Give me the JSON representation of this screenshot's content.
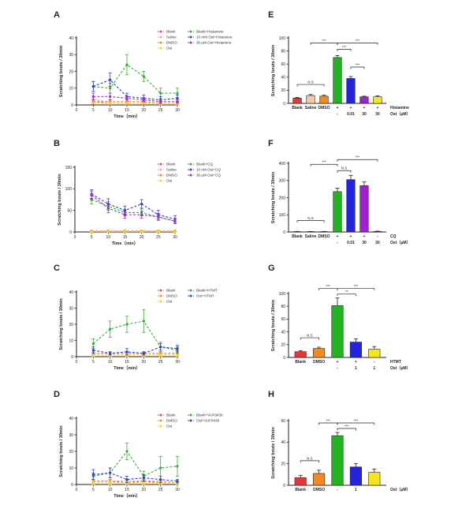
{
  "figure": {
    "background": "#ffffff"
  },
  "chart_data": [
    {
      "panel": "A",
      "type": "line",
      "xlabel": "Time（min）",
      "ylabel": "Scratching bouts / 30min",
      "xlim": [
        0,
        30
      ],
      "ylim": [
        0,
        40
      ],
      "xticks": [
        0,
        5,
        10,
        15,
        20,
        25,
        30
      ],
      "yticks": [
        0,
        10,
        20,
        30,
        40
      ],
      "x": [
        5,
        10,
        15,
        20,
        25,
        30
      ],
      "legend": [
        "Blank",
        "Saline",
        "DMSO",
        "Ost",
        "Blank+Histamine",
        "10 mM Ost+Histamine",
        "30 μM Ost+Histamine"
      ],
      "series": [
        {
          "name": "Blank",
          "color": "#e8464f",
          "values": [
            2,
            1,
            1,
            1,
            1,
            1
          ],
          "errors": [
            1,
            1,
            1,
            1,
            1,
            1
          ]
        },
        {
          "name": "Saline",
          "color": "#f4a3b5",
          "values": [
            3,
            2,
            2,
            2,
            1,
            1
          ],
          "errors": [
            1,
            1,
            1,
            1,
            1,
            1
          ]
        },
        {
          "name": "DMSO",
          "color": "#f08a24",
          "values": [
            2,
            2,
            2,
            2,
            1,
            1
          ],
          "errors": [
            1,
            1,
            1,
            1,
            1,
            1
          ]
        },
        {
          "name": "Ost",
          "color": "#f2d51c",
          "values": [
            1,
            1,
            1,
            1,
            1,
            1
          ],
          "errors": [
            0.5,
            0.5,
            0.5,
            0.5,
            0.5,
            0.5
          ]
        },
        {
          "name": "Blank+Histamine",
          "color": "#3aaa35",
          "values": [
            11,
            10,
            24,
            17,
            7,
            7
          ],
          "errors": [
            3,
            3,
            6,
            3,
            3,
            3
          ]
        },
        {
          "name": "10 mM Ost+Histamine",
          "color": "#2f3fd0",
          "values": [
            11,
            15,
            5,
            4,
            3,
            4
          ],
          "errors": [
            3,
            4,
            2,
            2,
            2,
            2
          ]
        },
        {
          "name": "30 μM Ost+Histamine",
          "color": "#9b30c8",
          "values": [
            5,
            5,
            4,
            3,
            2,
            2
          ],
          "errors": [
            2,
            2,
            1,
            1,
            1,
            1
          ]
        }
      ]
    },
    {
      "panel": "B",
      "type": "line",
      "xlabel": "Time（min）",
      "ylabel": "Scratching bouts / 30min",
      "xlim": [
        0,
        30
      ],
      "ylim": [
        0,
        150
      ],
      "xticks": [
        0,
        5,
        10,
        15,
        20,
        25,
        30
      ],
      "yticks": [
        0,
        50,
        100,
        150
      ],
      "x": [
        5,
        10,
        15,
        20,
        25,
        30
      ],
      "legend": [
        "Blank",
        "Saline",
        "DMSO",
        "Ost",
        "Blank+CQ",
        "10 nM Ost+CQ",
        "30 μM Ost+CQ"
      ],
      "series": [
        {
          "name": "Blank",
          "color": "#e8464f",
          "values": [
            2,
            2,
            2,
            2,
            2,
            2
          ],
          "errors": [
            1,
            1,
            1,
            1,
            1,
            1
          ]
        },
        {
          "name": "Saline",
          "color": "#f4a3b5",
          "values": [
            2,
            2,
            2,
            2,
            2,
            2
          ],
          "errors": [
            1,
            1,
            1,
            1,
            1,
            1
          ]
        },
        {
          "name": "DMSO",
          "color": "#f08a24",
          "values": [
            2,
            2,
            2,
            2,
            2,
            2
          ],
          "errors": [
            1,
            1,
            1,
            1,
            1,
            1
          ]
        },
        {
          "name": "Ost",
          "color": "#f2d51c",
          "values": [
            1,
            1,
            1,
            1,
            1,
            1
          ],
          "errors": [
            1,
            1,
            1,
            1,
            1,
            1
          ]
        },
        {
          "name": "Blank+CQ",
          "color": "#3aaa35",
          "values": [
            75,
            60,
            45,
            45,
            35,
            25
          ],
          "errors": [
            10,
            10,
            8,
            8,
            8,
            6
          ]
        },
        {
          "name": "10 nM Ost+CQ",
          "color": "#2f3fd0",
          "values": [
            88,
            65,
            50,
            65,
            40,
            30
          ],
          "errors": [
            10,
            12,
            10,
            10,
            10,
            8
          ]
        },
        {
          "name": "30 μM Ost+CQ",
          "color": "#9b30c8",
          "values": [
            85,
            55,
            40,
            40,
            35,
            25
          ],
          "errors": [
            10,
            10,
            8,
            8,
            8,
            6
          ]
        }
      ]
    },
    {
      "panel": "C",
      "type": "line",
      "xlabel": "Time（min）",
      "ylabel": "Scratching bouts / 30min",
      "xlim": [
        0,
        30
      ],
      "ylim": [
        0,
        40
      ],
      "xticks": [
        0,
        5,
        10,
        15,
        20,
        25,
        30
      ],
      "yticks": [
        0,
        10,
        20,
        30,
        40
      ],
      "x": [
        5,
        10,
        15,
        20,
        25,
        30
      ],
      "legend": [
        "Blank",
        "DMSO",
        "Ost",
        "Blank+HTMT",
        "Ost+HTMT"
      ],
      "series": [
        {
          "name": "Blank",
          "color": "#e8464f",
          "values": [
            2,
            2,
            2,
            2,
            2,
            2
          ],
          "errors": [
            1,
            1,
            1,
            1,
            1,
            1
          ]
        },
        {
          "name": "DMSO",
          "color": "#f08a24",
          "values": [
            2,
            2,
            2,
            2,
            2,
            2
          ],
          "errors": [
            1,
            1,
            1,
            1,
            1,
            1
          ]
        },
        {
          "name": "Ost",
          "color": "#f2d51c",
          "values": [
            1,
            1,
            1,
            1,
            1,
            1
          ],
          "errors": [
            1,
            1,
            1,
            1,
            1,
            1
          ]
        },
        {
          "name": "Blank+HTMT",
          "color": "#3aaa35",
          "values": [
            8,
            17,
            20,
            22,
            6,
            4
          ],
          "errors": [
            3,
            5,
            5,
            7,
            3,
            2
          ]
        },
        {
          "name": "Ost+HTMT",
          "color": "#2f3fd0",
          "values": [
            4,
            2,
            3,
            2,
            6,
            5
          ],
          "errors": [
            2,
            1,
            2,
            1,
            2,
            2
          ]
        }
      ]
    },
    {
      "panel": "D",
      "type": "line",
      "xlabel": "Time（min）",
      "ylabel": "Scratching bouts / 30min",
      "xlim": [
        0,
        30
      ],
      "ylim": [
        0,
        40
      ],
      "xticks": [
        0,
        5,
        10,
        15,
        20,
        25,
        30
      ],
      "yticks": [
        0,
        10,
        20,
        30,
        40
      ],
      "x": [
        5,
        10,
        15,
        20,
        25,
        30
      ],
      "legend": [
        "Blank",
        "DMSO",
        "Ost",
        "Blank+VUF8430",
        "Ost+VUF8430"
      ],
      "series": [
        {
          "name": "Blank",
          "color": "#e8464f",
          "values": [
            2,
            2,
            1,
            2,
            1,
            1
          ],
          "errors": [
            1,
            1,
            1,
            1,
            1,
            1
          ]
        },
        {
          "name": "DMSO",
          "color": "#f08a24",
          "values": [
            2,
            2,
            2,
            2,
            2,
            1
          ],
          "errors": [
            1,
            1,
            1,
            1,
            1,
            1
          ]
        },
        {
          "name": "Ost",
          "color": "#f2d51c",
          "values": [
            1,
            1,
            1,
            1,
            1,
            1
          ],
          "errors": [
            1,
            1,
            1,
            1,
            1,
            1
          ]
        },
        {
          "name": "Blank+VUF8430",
          "color": "#3aaa35",
          "values": [
            5,
            7,
            20,
            5,
            10,
            11
          ],
          "errors": [
            2,
            3,
            5,
            3,
            7,
            6
          ]
        },
        {
          "name": "Ost+VUF8430",
          "color": "#2f3fd0",
          "values": [
            6,
            7,
            3,
            4,
            3,
            2
          ],
          "errors": [
            3,
            3,
            2,
            2,
            2,
            1
          ]
        }
      ]
    },
    {
      "panel": "E",
      "type": "bar",
      "ylabel": "Scratching bouts / 30min",
      "ylim": [
        0,
        100
      ],
      "yticks": [
        0,
        20,
        40,
        60,
        80,
        100
      ],
      "categories": [
        "Blank",
        "Saline",
        "DMSO",
        "",
        "",
        "",
        ""
      ],
      "values": [
        8,
        12,
        11,
        70,
        38,
        10,
        10
      ],
      "errors": [
        1,
        1.5,
        1.5,
        3,
        3,
        1,
        1.5
      ],
      "colors": [
        "#e8353a",
        "#f5c9a8",
        "#f08a24",
        "#22b422",
        "#2323e0",
        "#a320d0",
        "#f5e61a"
      ],
      "conditions": [
        {
          "label": "Histamine",
          "marks": [
            "",
            "",
            "",
            "+",
            "+",
            "+",
            "+"
          ]
        },
        {
          "label": "Ost（μM）",
          "marks": [
            "",
            "",
            "",
            "-",
            "0.01",
            "30",
            "30"
          ]
        }
      ],
      "significance": [
        "***",
        "***",
        "***",
        "***",
        "N.S"
      ]
    },
    {
      "panel": "F",
      "type": "bar",
      "ylabel": "Scratching bouts / 30min",
      "ylim": [
        0,
        400
      ],
      "yticks": [
        0,
        100,
        200,
        300,
        400
      ],
      "categories": [
        "Blank",
        "Saline",
        "DMSO",
        "",
        "",
        "",
        ""
      ],
      "values": [
        2,
        2,
        2,
        235,
        305,
        270,
        3
      ],
      "errors": [
        1,
        1,
        1,
        20,
        25,
        22,
        2
      ],
      "colors": [
        "#e8353a",
        "#f5c9a8",
        "#f08a24",
        "#22b422",
        "#2323e0",
        "#a320d0",
        "#f5e61a"
      ],
      "conditions": [
        {
          "label": "CQ",
          "marks": [
            "",
            "",
            "",
            "+",
            "+",
            "+",
            "-"
          ]
        },
        {
          "label": "Ost（μM）",
          "marks": [
            "",
            "",
            "",
            "-",
            "0.01",
            "30",
            "30"
          ]
        }
      ],
      "significance": [
        "***",
        "***",
        "N.S",
        "N.S"
      ]
    },
    {
      "panel": "G",
      "type": "bar",
      "ylabel": "Scratching bouts / 30min",
      "ylim": [
        0,
        100
      ],
      "yticks": [
        0,
        20,
        40,
        60,
        80,
        100
      ],
      "categories": [
        "Blank",
        "DMSO",
        "",
        "",
        ""
      ],
      "values": [
        9,
        14,
        81,
        24,
        13
      ],
      "errors": [
        1.5,
        2,
        12,
        5,
        4
      ],
      "colors": [
        "#e8353a",
        "#f08a24",
        "#22b422",
        "#2323e0",
        "#f5e61a"
      ],
      "conditions": [
        {
          "label": "HTMT",
          "marks": [
            "",
            "",
            "+",
            "+",
            "-"
          ]
        },
        {
          "label": "Ost（μM）",
          "marks": [
            "",
            "",
            "-",
            "1",
            "1"
          ]
        }
      ],
      "significance": [
        "***",
        "***",
        "**",
        "N.S"
      ]
    },
    {
      "panel": "H",
      "type": "bar",
      "ylabel": "Scratching bouts / 30min",
      "ylim": [
        0,
        60
      ],
      "yticks": [
        0,
        20,
        40,
        60
      ],
      "categories": [
        "Blank",
        "DMSO",
        "",
        "",
        ""
      ],
      "values": [
        7,
        11,
        46,
        17,
        12
      ],
      "errors": [
        2,
        3,
        3,
        3,
        3
      ],
      "colors": [
        "#e8353a",
        "#f08a24",
        "#22b422",
        "#2323e0",
        "#f5e61a"
      ],
      "conditions": [
        {
          "label": "Ost（μM）",
          "marks": [
            "",
            "",
            "-",
            "1",
            ""
          ]
        }
      ],
      "significance": [
        "***",
        "***",
        "***",
        "N.S"
      ]
    }
  ]
}
